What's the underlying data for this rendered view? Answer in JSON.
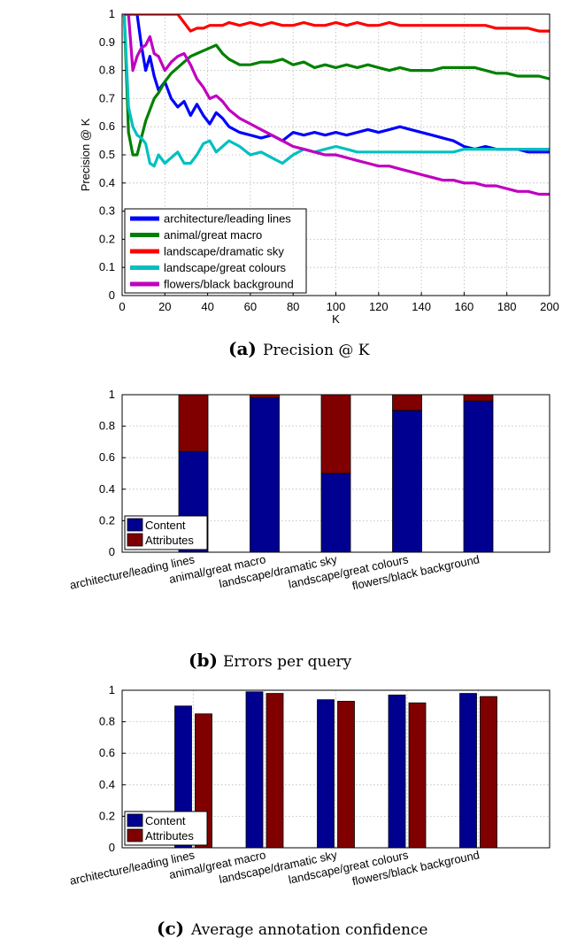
{
  "chart_data": [
    {
      "type": "line",
      "xlabel": "K",
      "ylabel": "Precision @ K",
      "xlim": [
        0,
        200
      ],
      "ylim": [
        0,
        1
      ],
      "xticks": [
        0,
        20,
        40,
        60,
        80,
        100,
        120,
        140,
        160,
        180,
        200
      ],
      "yticks": [
        0,
        0.1,
        0.2,
        0.3,
        0.4,
        0.5,
        0.6,
        0.7,
        0.8,
        0.9,
        1
      ],
      "grid": true,
      "legend_position": "bottom-left",
      "caption_letter": "(a)",
      "caption_text": "Precision @ K",
      "series": [
        {
          "name": "architecture/leading lines",
          "color": "#0000ff",
          "x": [
            1,
            3,
            5,
            7,
            9,
            11,
            13,
            15,
            17,
            20,
            23,
            26,
            29,
            32,
            35,
            38,
            41,
            44,
            47,
            50,
            55,
            60,
            65,
            70,
            75,
            80,
            85,
            90,
            95,
            100,
            105,
            110,
            115,
            120,
            125,
            130,
            135,
            140,
            145,
            150,
            155,
            160,
            165,
            170,
            175,
            180,
            185,
            190,
            195,
            200
          ],
          "y": [
            1,
            1,
            1,
            1,
            0.89,
            0.8,
            0.85,
            0.78,
            0.73,
            0.76,
            0.7,
            0.67,
            0.69,
            0.64,
            0.68,
            0.64,
            0.61,
            0.65,
            0.63,
            0.6,
            0.58,
            0.57,
            0.56,
            0.57,
            0.55,
            0.58,
            0.57,
            0.58,
            0.57,
            0.58,
            0.57,
            0.58,
            0.59,
            0.58,
            0.59,
            0.6,
            0.59,
            0.58,
            0.57,
            0.56,
            0.55,
            0.53,
            0.52,
            0.53,
            0.52,
            0.52,
            0.52,
            0.51,
            0.51,
            0.51
          ]
        },
        {
          "name": "animal/great macro",
          "color": "#008000",
          "x": [
            1,
            3,
            5,
            7,
            9,
            11,
            13,
            15,
            17,
            20,
            23,
            26,
            29,
            32,
            35,
            38,
            41,
            44,
            47,
            50,
            55,
            60,
            65,
            70,
            75,
            80,
            85,
            90,
            95,
            100,
            105,
            110,
            115,
            120,
            125,
            130,
            135,
            140,
            145,
            150,
            155,
            160,
            165,
            170,
            175,
            180,
            185,
            190,
            195,
            200
          ],
          "y": [
            1,
            0.58,
            0.5,
            0.5,
            0.56,
            0.62,
            0.66,
            0.7,
            0.72,
            0.76,
            0.79,
            0.81,
            0.83,
            0.85,
            0.86,
            0.87,
            0.88,
            0.89,
            0.86,
            0.84,
            0.82,
            0.82,
            0.83,
            0.83,
            0.84,
            0.82,
            0.83,
            0.81,
            0.82,
            0.81,
            0.82,
            0.81,
            0.82,
            0.81,
            0.8,
            0.81,
            0.8,
            0.8,
            0.8,
            0.81,
            0.81,
            0.81,
            0.81,
            0.8,
            0.79,
            0.79,
            0.78,
            0.78,
            0.78,
            0.77
          ]
        },
        {
          "name": "landscape/dramatic sky",
          "color": "#ff0000",
          "x": [
            1,
            3,
            5,
            7,
            9,
            11,
            13,
            15,
            17,
            20,
            23,
            26,
            29,
            32,
            35,
            38,
            41,
            44,
            47,
            50,
            55,
            60,
            65,
            70,
            75,
            80,
            85,
            90,
            95,
            100,
            105,
            110,
            115,
            120,
            125,
            130,
            135,
            140,
            145,
            150,
            155,
            160,
            165,
            170,
            175,
            180,
            185,
            190,
            195,
            200
          ],
          "y": [
            1,
            1,
            1,
            1,
            1,
            1,
            1,
            1,
            1,
            1,
            1,
            1,
            0.97,
            0.94,
            0.95,
            0.95,
            0.96,
            0.96,
            0.96,
            0.97,
            0.96,
            0.97,
            0.96,
            0.97,
            0.96,
            0.96,
            0.97,
            0.96,
            0.96,
            0.97,
            0.96,
            0.97,
            0.96,
            0.96,
            0.97,
            0.96,
            0.96,
            0.96,
            0.96,
            0.96,
            0.96,
            0.96,
            0.96,
            0.96,
            0.95,
            0.95,
            0.95,
            0.95,
            0.94,
            0.94
          ]
        },
        {
          "name": "landscape/great colours",
          "color": "#00c0c0",
          "x": [
            1,
            3,
            5,
            7,
            9,
            11,
            13,
            15,
            17,
            20,
            23,
            26,
            29,
            32,
            35,
            38,
            41,
            44,
            47,
            50,
            55,
            60,
            65,
            70,
            75,
            80,
            85,
            90,
            95,
            100,
            105,
            110,
            115,
            120,
            125,
            130,
            135,
            140,
            145,
            150,
            155,
            160,
            165,
            170,
            175,
            180,
            185,
            190,
            195,
            200
          ],
          "y": [
            1,
            0.67,
            0.6,
            0.57,
            0.56,
            0.54,
            0.47,
            0.46,
            0.5,
            0.47,
            0.49,
            0.51,
            0.47,
            0.47,
            0.5,
            0.54,
            0.55,
            0.51,
            0.53,
            0.55,
            0.53,
            0.5,
            0.51,
            0.49,
            0.47,
            0.5,
            0.52,
            0.51,
            0.52,
            0.53,
            0.52,
            0.51,
            0.51,
            0.51,
            0.51,
            0.51,
            0.51,
            0.51,
            0.51,
            0.51,
            0.51,
            0.52,
            0.52,
            0.52,
            0.52,
            0.52,
            0.52,
            0.52,
            0.52,
            0.52
          ]
        },
        {
          "name": "flowers/black background",
          "color": "#c000c0",
          "x": [
            1,
            3,
            5,
            7,
            9,
            11,
            13,
            15,
            17,
            20,
            23,
            26,
            29,
            32,
            35,
            38,
            41,
            44,
            47,
            50,
            55,
            60,
            65,
            70,
            75,
            80,
            85,
            90,
            95,
            100,
            105,
            110,
            115,
            120,
            125,
            130,
            135,
            140,
            145,
            150,
            155,
            160,
            165,
            170,
            175,
            180,
            185,
            190,
            195,
            200
          ],
          "y": [
            1,
            1,
            0.8,
            0.85,
            0.88,
            0.89,
            0.92,
            0.86,
            0.85,
            0.8,
            0.83,
            0.85,
            0.86,
            0.82,
            0.77,
            0.74,
            0.7,
            0.71,
            0.69,
            0.66,
            0.63,
            0.61,
            0.59,
            0.57,
            0.55,
            0.53,
            0.52,
            0.51,
            0.5,
            0.5,
            0.49,
            0.48,
            0.47,
            0.46,
            0.46,
            0.45,
            0.44,
            0.43,
            0.42,
            0.41,
            0.41,
            0.4,
            0.4,
            0.39,
            0.39,
            0.38,
            0.37,
            0.37,
            0.36,
            0.36
          ]
        }
      ]
    },
    {
      "type": "bar",
      "stacked": true,
      "categories": [
        "architecture/leading lines",
        "animal/great macro",
        "landscape/dramatic sky",
        "landscape/great colours",
        "flowers/black background"
      ],
      "series": [
        {
          "name": "Content",
          "color": "#000090",
          "values": [
            0.64,
            0.98,
            0.5,
            0.9,
            0.96
          ]
        },
        {
          "name": "Attributes",
          "color": "#800000",
          "values": [
            0.36,
            0.02,
            0.5,
            0.1,
            0.04
          ]
        }
      ],
      "ylim": [
        0,
        1
      ],
      "yticks": [
        0,
        0.2,
        0.4,
        0.6,
        0.8,
        1
      ],
      "grid": true,
      "legend_position": "bottom-left",
      "caption_letter": "(b)",
      "caption_text": "Errors per query"
    },
    {
      "type": "bar",
      "stacked": false,
      "categories": [
        "architecture/leading lines",
        "animal/great macro",
        "landscape/dramatic sky",
        "landscape/great colours",
        "flowers/black background"
      ],
      "series": [
        {
          "name": "Content",
          "color": "#000090",
          "values": [
            0.9,
            0.99,
            0.94,
            0.97,
            0.98
          ]
        },
        {
          "name": "Attributes",
          "color": "#800000",
          "values": [
            0.85,
            0.98,
            0.93,
            0.92,
            0.96
          ]
        }
      ],
      "ylim": [
        0,
        1
      ],
      "yticks": [
        0,
        0.2,
        0.4,
        0.6,
        0.8,
        1
      ],
      "grid": true,
      "legend_position": "bottom-left",
      "caption_letter": "(c)",
      "caption_text": "Average annotation confidence"
    }
  ]
}
